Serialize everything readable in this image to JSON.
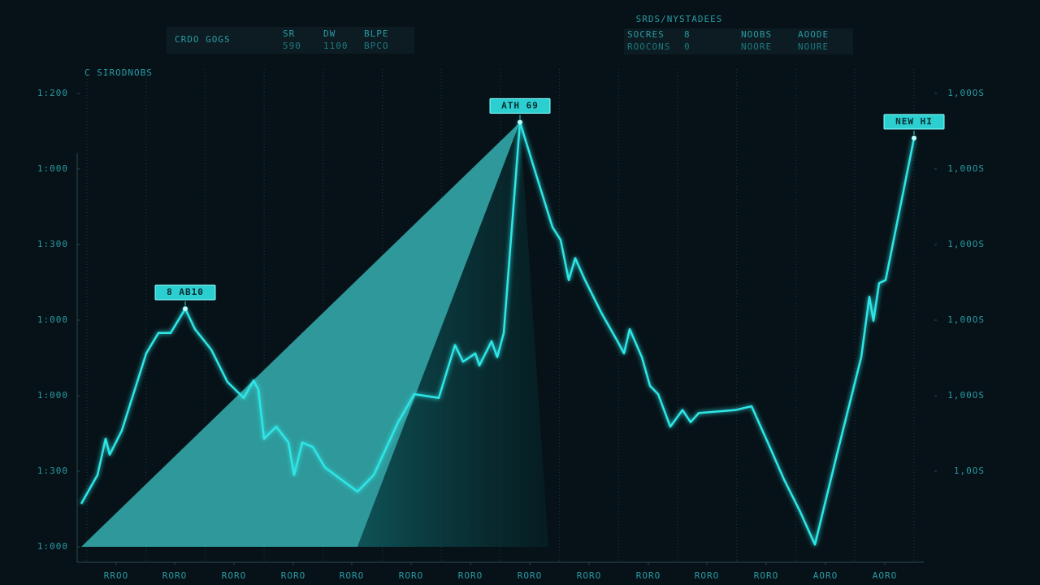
{
  "header": {
    "left_panel": {
      "label": "CRDO GOGS",
      "cells": [
        [
          "SR",
          "590"
        ],
        [
          "DW",
          "1100"
        ],
        [
          "BLPE",
          "BPCO"
        ]
      ]
    },
    "right_title": "SRDS/NYSTADEES",
    "right_panel": [
      [
        "SOCRES",
        "ROOCONS"
      ],
      [
        "8",
        "0"
      ],
      [
        "NOOBS",
        "NOORE"
      ],
      [
        "AOODE",
        "NOURE"
      ]
    ]
  },
  "chart_data": {
    "type": "line",
    "subtitle": "C SIRODNOBS",
    "x": [
      0,
      20,
      30,
      35,
      50,
      80,
      95,
      110,
      128,
      140,
      160,
      180,
      200,
      212,
      218,
      225,
      240,
      255,
      262,
      272,
      285,
      300,
      320,
      340,
      360,
      390,
      410,
      440,
      460,
      470,
      485,
      490,
      505,
      512,
      520,
      540,
      560,
      580,
      590,
      600,
      608,
      620,
      640,
      660,
      668,
      675,
      690,
      700,
      710,
      725,
      740,
      750,
      760,
      805,
      825,
      845,
      865,
      885,
      903,
      930,
      960,
      970,
      975,
      982,
      990,
      1025
    ],
    "series": [
      {
        "color": "#2ee6e6",
        "values": [
          57,
          95,
          143,
          122,
          154,
          256,
          283,
          283,
          315,
          288,
          261,
          218,
          197,
          220,
          208,
          143,
          159,
          138,
          95,
          138,
          132,
          105,
          89,
          73,
          95,
          165,
          202,
          197,
          267,
          245,
          256,
          240,
          272,
          251,
          283,
          562,
          492,
          423,
          406,
          353,
          382,
          353,
          310,
          272,
          256,
          288,
          251,
          213,
          202,
          159,
          181,
          165,
          177,
          181,
          186,
          138,
          89,
          46,
          3,
          122,
          251,
          331,
          299,
          349,
          353,
          541
        ]
      }
    ],
    "xlim": [
      0,
      1040
    ],
    "ylim": [
      0,
      600
    ],
    "xticks": [
      {
        "value": 43,
        "label": "RROO"
      },
      {
        "value": 115,
        "label": "RORO"
      },
      {
        "value": 188,
        "label": "RORO"
      },
      {
        "value": 261,
        "label": "RORO"
      },
      {
        "value": 333,
        "label": "RORO"
      },
      {
        "value": 406,
        "label": "RORO"
      },
      {
        "value": 479,
        "label": "RORO"
      },
      {
        "value": 552,
        "label": "RORO"
      },
      {
        "value": 625,
        "label": "RORO"
      },
      {
        "value": 698,
        "label": "RORO"
      },
      {
        "value": 770,
        "label": "RORO"
      },
      {
        "value": 843,
        "label": "RORO"
      },
      {
        "value": 916,
        "label": "AORO"
      },
      {
        "value": 989,
        "label": "AORO"
      }
    ],
    "yticks": [
      {
        "value": 0,
        "label": "1:000"
      },
      {
        "value": 100,
        "label": "1:300"
      },
      {
        "value": 200,
        "label": "1:000"
      },
      {
        "value": 300,
        "label": "1:000"
      },
      {
        "value": 400,
        "label": "1:300"
      },
      {
        "value": 500,
        "label": "1:000"
      },
      {
        "value": 600,
        "label": "1:200"
      }
    ],
    "y2lim": [
      0,
      600
    ],
    "y2ticks": [
      {
        "value": 100,
        "label": "1,0OS"
      },
      {
        "value": 200,
        "label": "1,00OS"
      },
      {
        "value": 300,
        "label": "1,00OS"
      },
      {
        "value": 400,
        "label": "1,00OS"
      },
      {
        "value": 500,
        "label": "1,00OS"
      },
      {
        "value": 600,
        "label": "1,00OS"
      }
    ],
    "annotations": [
      {
        "text": "8 AB10",
        "x": 128,
        "y": 315
      },
      {
        "text": "ATH 69",
        "x": 540,
        "y": 562
      },
      {
        "text": "NEW HI",
        "x": 1025,
        "y": 541
      }
    ]
  }
}
